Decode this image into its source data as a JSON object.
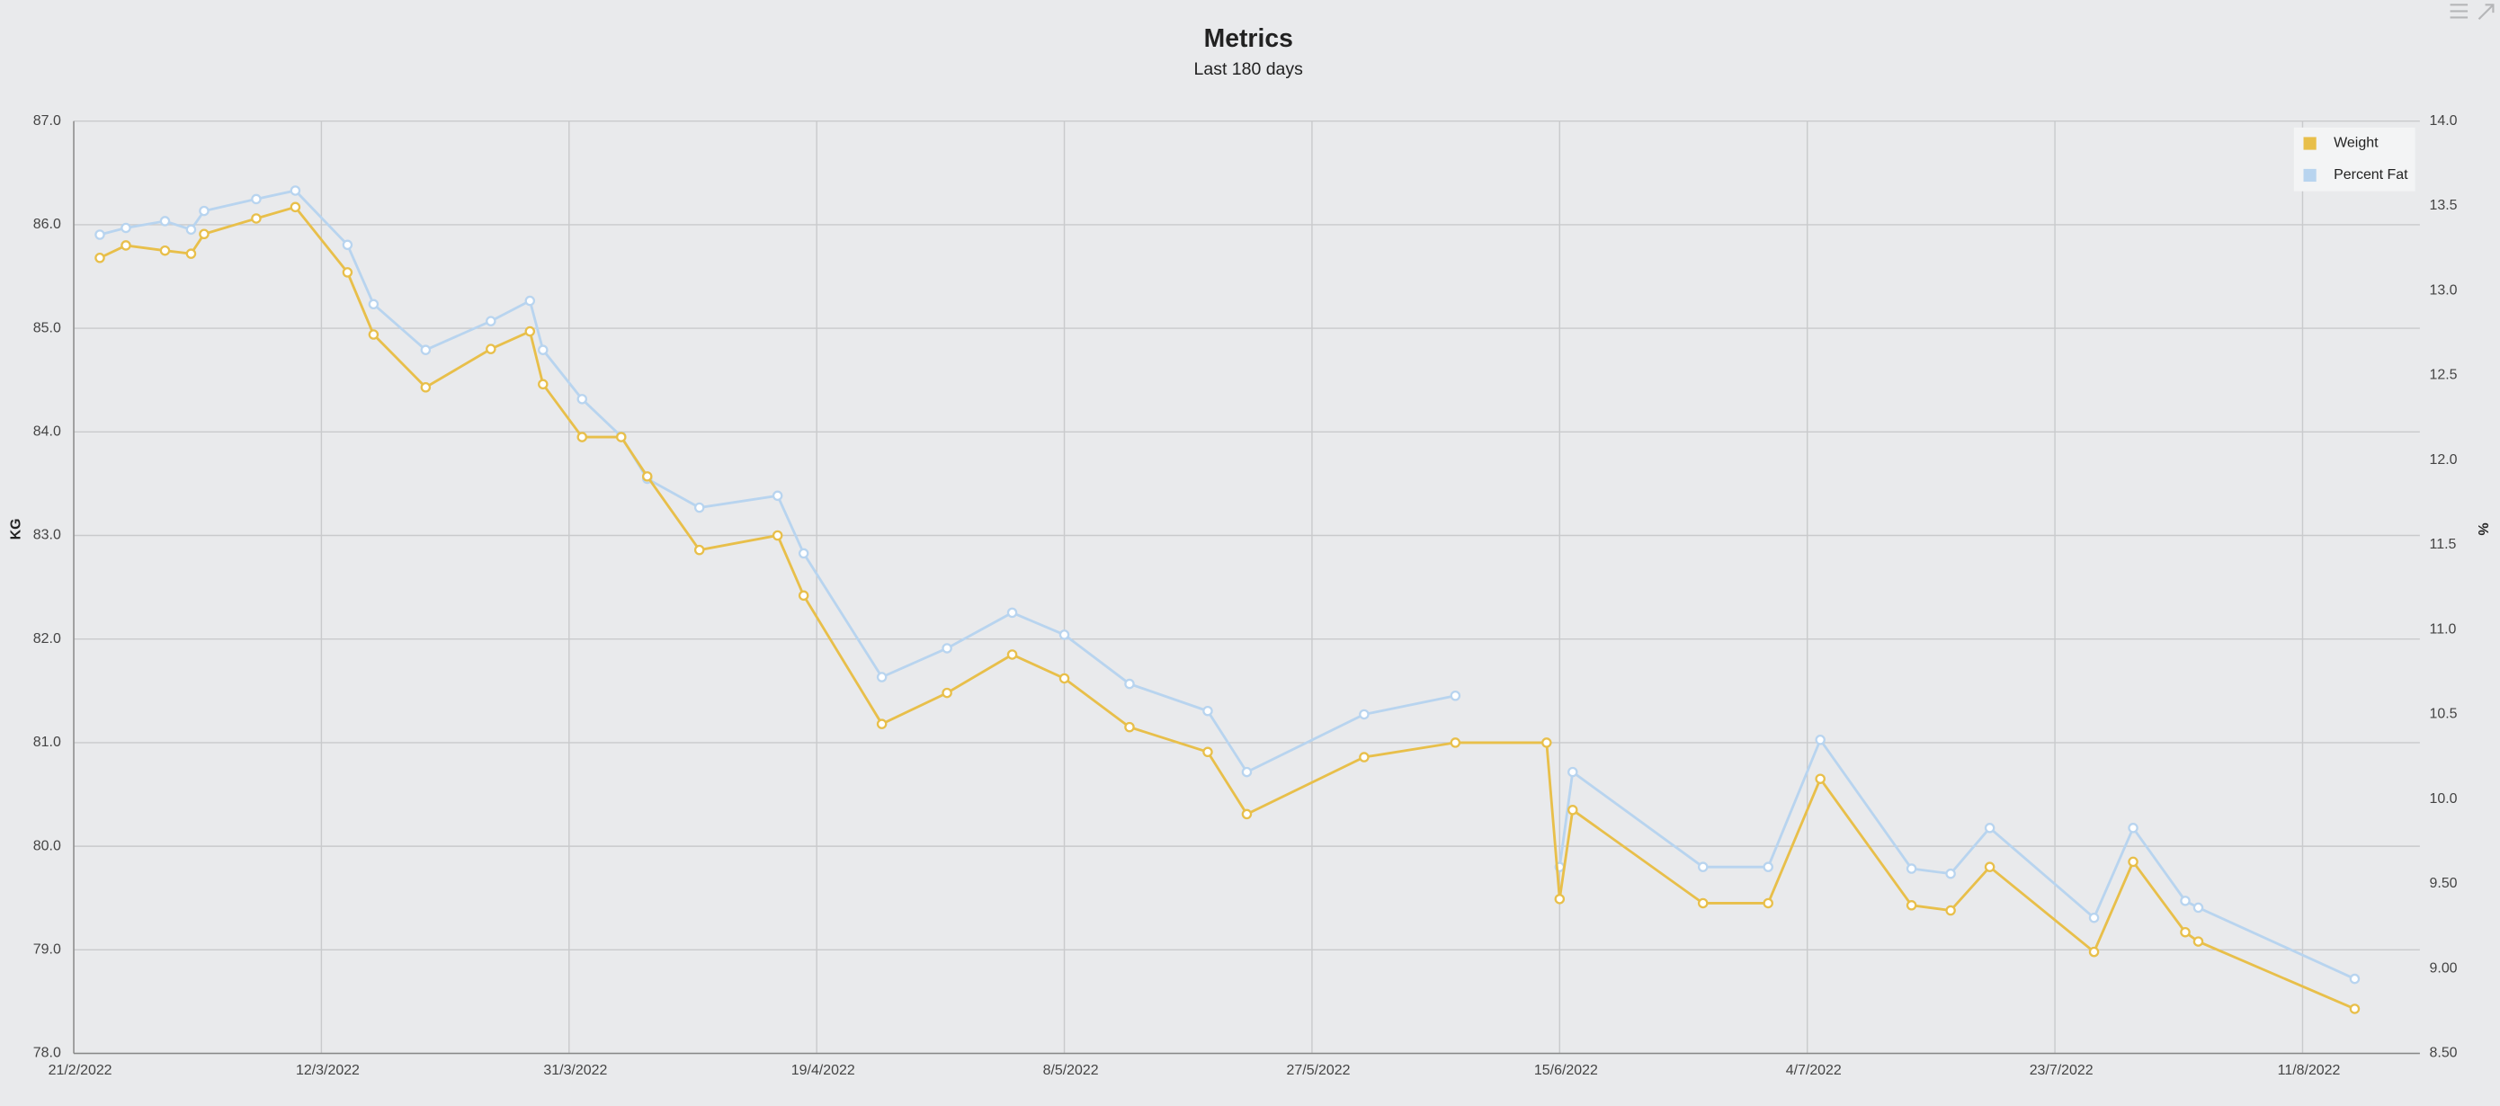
{
  "chart_data": {
    "type": "line",
    "title": "Metrics",
    "subtitle": "Last 180 days",
    "y_label": "KG",
    "y2_label": "%",
    "x": [
      "2022-02-23",
      "2022-02-25",
      "2022-02-28",
      "2022-03-02",
      "2022-03-03",
      "2022-03-07",
      "2022-03-10",
      "2022-03-14",
      "2022-03-16",
      "2022-03-20",
      "2022-03-25",
      "2022-03-28",
      "2022-03-29",
      "2022-04-01",
      "2022-04-04",
      "2022-04-06",
      "2022-04-10",
      "2022-04-16",
      "2022-04-18",
      "2022-04-24",
      "2022-04-29",
      "2022-05-04",
      "2022-05-08",
      "2022-05-13",
      "2022-05-19",
      "2022-05-22",
      "2022-05-31",
      "2022-06-07",
      "2022-06-14",
      "2022-06-15",
      "2022-06-16",
      "2022-06-26",
      "2022-07-01",
      "2022-07-05",
      "2022-07-12",
      "2022-07-15",
      "2022-07-18",
      "2022-07-26",
      "2022-07-29",
      "2022-08-02",
      "2022-08-03",
      "2022-08-15"
    ],
    "series": [
      {
        "name": "Weight",
        "color": "#e8bf4a",
        "values": [
          85.68,
          85.8,
          85.75,
          85.72,
          85.91,
          86.06,
          86.17,
          85.54,
          84.94,
          84.43,
          84.8,
          84.97,
          84.46,
          83.95,
          83.95,
          83.57,
          82.86,
          83.0,
          82.42,
          81.18,
          81.48,
          81.85,
          81.62,
          81.15,
          80.91,
          80.31,
          80.86,
          81.0,
          81.0,
          79.49,
          80.35,
          79.45,
          79.45,
          80.65,
          79.43,
          79.38,
          79.8,
          78.98,
          79.85,
          79.17,
          79.08,
          78.43
        ]
      },
      {
        "name": "Percent Fat",
        "color": "#b8d4ef",
        "axis": "y2",
        "values": [
          13.33,
          13.37,
          13.41,
          13.36,
          13.47,
          13.54,
          13.59,
          13.27,
          12.92,
          12.65,
          12.82,
          12.94,
          12.65,
          12.36,
          12.14,
          11.89,
          11.72,
          11.79,
          11.45,
          10.72,
          10.89,
          11.1,
          10.97,
          10.68,
          10.52,
          10.16,
          10.5,
          10.61,
          null,
          9.6,
          10.16,
          9.6,
          9.6,
          10.35,
          9.59,
          9.56,
          9.83,
          9.3,
          9.83,
          9.4,
          9.36,
          8.94
        ]
      }
    ],
    "xlim": [
      "2022-02-21",
      "2022-08-20"
    ],
    "xticks": [
      {
        "value": "2022-02-21",
        "label": "21/2/2022"
      },
      {
        "value": "2022-03-12",
        "label": "12/3/2022"
      },
      {
        "value": "2022-03-31",
        "label": "31/3/2022"
      },
      {
        "value": "2022-04-19",
        "label": "19/4/2022"
      },
      {
        "value": "2022-05-08",
        "label": "8/5/2022"
      },
      {
        "value": "2022-05-27",
        "label": "27/5/2022"
      },
      {
        "value": "2022-06-15",
        "label": "15/6/2022"
      },
      {
        "value": "2022-07-04",
        "label": "4/7/2022"
      },
      {
        "value": "2022-07-23",
        "label": "23/7/2022"
      },
      {
        "value": "2022-08-11",
        "label": "11/8/2022"
      }
    ],
    "ylim": [
      78,
      87
    ],
    "yticks": [
      {
        "value": 78,
        "label": "78.0"
      },
      {
        "value": 79,
        "label": "79.0"
      },
      {
        "value": 80,
        "label": "80.0"
      },
      {
        "value": 81,
        "label": "81.0"
      },
      {
        "value": 82,
        "label": "82.0"
      },
      {
        "value": 83,
        "label": "83.0"
      },
      {
        "value": 84,
        "label": "84.0"
      },
      {
        "value": 85,
        "label": "85.0"
      },
      {
        "value": 86,
        "label": "86.0"
      },
      {
        "value": 87,
        "label": "87.0"
      }
    ],
    "y2lim": [
      8.5,
      14
    ],
    "y2ticks": [
      {
        "value": 8.5,
        "label": "8.50"
      },
      {
        "value": 9,
        "label": "9.00"
      },
      {
        "value": 9.5,
        "label": "9.50"
      },
      {
        "value": 10,
        "label": "10.0"
      },
      {
        "value": 10.5,
        "label": "10.5"
      },
      {
        "value": 11,
        "label": "11.0"
      },
      {
        "value": 11.5,
        "label": "11.5"
      },
      {
        "value": 12,
        "label": "12.0"
      },
      {
        "value": 12.5,
        "label": "12.5"
      },
      {
        "value": 13,
        "label": "13.0"
      },
      {
        "value": 13.5,
        "label": "13.5"
      },
      {
        "value": 14,
        "label": "14.0"
      }
    ],
    "grid": true,
    "legend": "top-right"
  }
}
